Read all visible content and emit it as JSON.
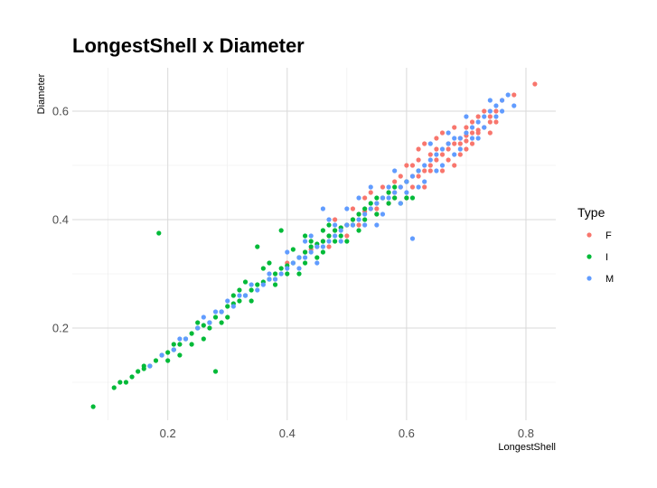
{
  "chart_data": {
    "type": "scatter",
    "title": "LongestShell x Diameter",
    "xlabel": "LongestShell",
    "ylabel": "Diameter",
    "xlim": [
      0.04,
      0.85
    ],
    "ylim": [
      0.03,
      0.68
    ],
    "x_ticks": [
      0.2,
      0.4,
      0.6,
      0.8
    ],
    "x_tick_labels": [
      "0.2",
      "0.4",
      "0.6",
      "0.8"
    ],
    "y_ticks": [
      0.2,
      0.4,
      0.6
    ],
    "y_tick_labels": [
      "0.2",
      "0.4",
      "0.6"
    ],
    "grid": true,
    "legend": {
      "title": "Type",
      "placement": "right"
    },
    "series": [
      {
        "name": "F",
        "color": "#F8766D",
        "points": [
          [
            0.815,
            0.65
          ],
          [
            0.78,
            0.63
          ],
          [
            0.75,
            0.6
          ],
          [
            0.74,
            0.59
          ],
          [
            0.73,
            0.57
          ],
          [
            0.72,
            0.565
          ],
          [
            0.71,
            0.56
          ],
          [
            0.7,
            0.555
          ],
          [
            0.7,
            0.545
          ],
          [
            0.69,
            0.54
          ],
          [
            0.68,
            0.54
          ],
          [
            0.67,
            0.53
          ],
          [
            0.66,
            0.52
          ],
          [
            0.65,
            0.51
          ],
          [
            0.64,
            0.5
          ],
          [
            0.63,
            0.49
          ],
          [
            0.62,
            0.48
          ],
          [
            0.61,
            0.48
          ],
          [
            0.6,
            0.47
          ],
          [
            0.59,
            0.46
          ],
          [
            0.58,
            0.45
          ],
          [
            0.57,
            0.45
          ],
          [
            0.56,
            0.44
          ],
          [
            0.55,
            0.43
          ],
          [
            0.54,
            0.42
          ],
          [
            0.53,
            0.415
          ],
          [
            0.52,
            0.41
          ],
          [
            0.51,
            0.4
          ],
          [
            0.5,
            0.39
          ],
          [
            0.49,
            0.385
          ],
          [
            0.48,
            0.38
          ],
          [
            0.47,
            0.37
          ],
          [
            0.46,
            0.36
          ],
          [
            0.45,
            0.35
          ],
          [
            0.44,
            0.345
          ],
          [
            0.43,
            0.34
          ],
          [
            0.55,
            0.41
          ],
          [
            0.6,
            0.5
          ],
          [
            0.62,
            0.53
          ],
          [
            0.65,
            0.55
          ],
          [
            0.68,
            0.57
          ],
          [
            0.72,
            0.59
          ],
          [
            0.6,
            0.44
          ],
          [
            0.63,
            0.46
          ],
          [
            0.66,
            0.49
          ],
          [
            0.58,
            0.47
          ],
          [
            0.64,
            0.52
          ],
          [
            0.7,
            0.57
          ],
          [
            0.74,
            0.58
          ],
          [
            0.67,
            0.51
          ],
          [
            0.69,
            0.55
          ],
          [
            0.71,
            0.58
          ],
          [
            0.57,
            0.43
          ],
          [
            0.52,
            0.39
          ],
          [
            0.5,
            0.37
          ],
          [
            0.47,
            0.35
          ],
          [
            0.62,
            0.51
          ],
          [
            0.76,
            0.62
          ],
          [
            0.73,
            0.6
          ],
          [
            0.66,
            0.56
          ],
          [
            0.63,
            0.54
          ],
          [
            0.68,
            0.5
          ],
          [
            0.75,
            0.58
          ],
          [
            0.53,
            0.44
          ],
          [
            0.56,
            0.46
          ],
          [
            0.61,
            0.46
          ],
          [
            0.64,
            0.49
          ],
          [
            0.72,
            0.56
          ],
          [
            0.7,
            0.53
          ],
          [
            0.59,
            0.48
          ],
          [
            0.4,
            0.32
          ],
          [
            0.42,
            0.33
          ],
          [
            0.38,
            0.29
          ],
          [
            0.54,
            0.45
          ],
          [
            0.65,
            0.53
          ],
          [
            0.61,
            0.5
          ],
          [
            0.67,
            0.54
          ],
          [
            0.69,
            0.52
          ],
          [
            0.71,
            0.54
          ],
          [
            0.74,
            0.56
          ],
          [
            0.58,
            0.44
          ],
          [
            0.55,
            0.42
          ],
          [
            0.51,
            0.42
          ],
          [
            0.48,
            0.4
          ]
        ]
      },
      {
        "name": "I",
        "color": "#00BA38",
        "points": [
          [
            0.075,
            0.055
          ],
          [
            0.11,
            0.09
          ],
          [
            0.13,
            0.1
          ],
          [
            0.14,
            0.11
          ],
          [
            0.15,
            0.12
          ],
          [
            0.16,
            0.125
          ],
          [
            0.17,
            0.13
          ],
          [
            0.18,
            0.14
          ],
          [
            0.19,
            0.15
          ],
          [
            0.2,
            0.155
          ],
          [
            0.21,
            0.16
          ],
          [
            0.22,
            0.17
          ],
          [
            0.23,
            0.18
          ],
          [
            0.24,
            0.19
          ],
          [
            0.25,
            0.2
          ],
          [
            0.26,
            0.205
          ],
          [
            0.27,
            0.21
          ],
          [
            0.28,
            0.22
          ],
          [
            0.29,
            0.23
          ],
          [
            0.3,
            0.24
          ],
          [
            0.31,
            0.245
          ],
          [
            0.32,
            0.25
          ],
          [
            0.33,
            0.26
          ],
          [
            0.34,
            0.27
          ],
          [
            0.35,
            0.28
          ],
          [
            0.36,
            0.285
          ],
          [
            0.37,
            0.29
          ],
          [
            0.38,
            0.3
          ],
          [
            0.39,
            0.31
          ],
          [
            0.4,
            0.315
          ],
          [
            0.41,
            0.32
          ],
          [
            0.42,
            0.33
          ],
          [
            0.43,
            0.34
          ],
          [
            0.44,
            0.35
          ],
          [
            0.45,
            0.355
          ],
          [
            0.46,
            0.36
          ],
          [
            0.47,
            0.37
          ],
          [
            0.48,
            0.38
          ],
          [
            0.49,
            0.385
          ],
          [
            0.5,
            0.39
          ],
          [
            0.51,
            0.4
          ],
          [
            0.52,
            0.41
          ],
          [
            0.53,
            0.42
          ],
          [
            0.54,
            0.43
          ],
          [
            0.55,
            0.44
          ],
          [
            0.56,
            0.44
          ],
          [
            0.57,
            0.45
          ],
          [
            0.58,
            0.46
          ],
          [
            0.6,
            0.47
          ],
          [
            0.62,
            0.49
          ],
          [
            0.185,
            0.375
          ],
          [
            0.28,
            0.12
          ],
          [
            0.26,
            0.18
          ],
          [
            0.33,
            0.285
          ],
          [
            0.36,
            0.31
          ],
          [
            0.38,
            0.28
          ],
          [
            0.4,
            0.3
          ],
          [
            0.43,
            0.32
          ],
          [
            0.44,
            0.36
          ],
          [
            0.35,
            0.35
          ],
          [
            0.39,
            0.38
          ],
          [
            0.41,
            0.345
          ],
          [
            0.46,
            0.38
          ],
          [
            0.48,
            0.36
          ],
          [
            0.5,
            0.36
          ],
          [
            0.52,
            0.38
          ],
          [
            0.55,
            0.41
          ],
          [
            0.59,
            0.43
          ],
          [
            0.61,
            0.44
          ],
          [
            0.22,
            0.15
          ],
          [
            0.24,
            0.17
          ],
          [
            0.3,
            0.22
          ],
          [
            0.32,
            0.27
          ],
          [
            0.34,
            0.25
          ],
          [
            0.37,
            0.32
          ],
          [
            0.42,
            0.3
          ],
          [
            0.45,
            0.33
          ],
          [
            0.47,
            0.39
          ],
          [
            0.49,
            0.37
          ],
          [
            0.53,
            0.4
          ],
          [
            0.25,
            0.21
          ],
          [
            0.27,
            0.2
          ],
          [
            0.29,
            0.21
          ],
          [
            0.31,
            0.26
          ],
          [
            0.43,
            0.37
          ],
          [
            0.46,
            0.34
          ],
          [
            0.51,
            0.39
          ],
          [
            0.57,
            0.43
          ],
          [
            0.58,
            0.44
          ],
          [
            0.6,
            0.44
          ],
          [
            0.12,
            0.1
          ],
          [
            0.16,
            0.13
          ],
          [
            0.2,
            0.14
          ],
          [
            0.21,
            0.17
          ]
        ]
      },
      {
        "name": "M",
        "color": "#619CFF",
        "points": [
          [
            0.77,
            0.63
          ],
          [
            0.76,
            0.62
          ],
          [
            0.75,
            0.61
          ],
          [
            0.74,
            0.6
          ],
          [
            0.73,
            0.59
          ],
          [
            0.72,
            0.58
          ],
          [
            0.71,
            0.57
          ],
          [
            0.7,
            0.56
          ],
          [
            0.69,
            0.55
          ],
          [
            0.68,
            0.55
          ],
          [
            0.67,
            0.54
          ],
          [
            0.66,
            0.53
          ],
          [
            0.65,
            0.52
          ],
          [
            0.64,
            0.51
          ],
          [
            0.63,
            0.5
          ],
          [
            0.62,
            0.49
          ],
          [
            0.61,
            0.48
          ],
          [
            0.6,
            0.47
          ],
          [
            0.59,
            0.46
          ],
          [
            0.58,
            0.45
          ],
          [
            0.57,
            0.44
          ],
          [
            0.56,
            0.44
          ],
          [
            0.55,
            0.43
          ],
          [
            0.54,
            0.42
          ],
          [
            0.53,
            0.41
          ],
          [
            0.52,
            0.4
          ],
          [
            0.51,
            0.39
          ],
          [
            0.5,
            0.39
          ],
          [
            0.49,
            0.38
          ],
          [
            0.48,
            0.37
          ],
          [
            0.47,
            0.36
          ],
          [
            0.46,
            0.35
          ],
          [
            0.45,
            0.35
          ],
          [
            0.44,
            0.34
          ],
          [
            0.43,
            0.33
          ],
          [
            0.42,
            0.33
          ],
          [
            0.41,
            0.32
          ],
          [
            0.4,
            0.31
          ],
          [
            0.39,
            0.3
          ],
          [
            0.38,
            0.29
          ],
          [
            0.37,
            0.29
          ],
          [
            0.36,
            0.28
          ],
          [
            0.35,
            0.27
          ],
          [
            0.33,
            0.26
          ],
          [
            0.31,
            0.24
          ],
          [
            0.29,
            0.23
          ],
          [
            0.27,
            0.21
          ],
          [
            0.25,
            0.2
          ],
          [
            0.23,
            0.18
          ],
          [
            0.21,
            0.16
          ],
          [
            0.19,
            0.15
          ],
          [
            0.17,
            0.13
          ],
          [
            0.46,
            0.42
          ],
          [
            0.52,
            0.44
          ],
          [
            0.61,
            0.365
          ],
          [
            0.55,
            0.39
          ],
          [
            0.6,
            0.45
          ],
          [
            0.63,
            0.47
          ],
          [
            0.66,
            0.5
          ],
          [
            0.69,
            0.53
          ],
          [
            0.72,
            0.55
          ],
          [
            0.75,
            0.59
          ],
          [
            0.78,
            0.61
          ],
          [
            0.74,
            0.62
          ],
          [
            0.7,
            0.59
          ],
          [
            0.64,
            0.54
          ],
          [
            0.58,
            0.49
          ],
          [
            0.54,
            0.46
          ],
          [
            0.5,
            0.42
          ],
          [
            0.47,
            0.4
          ],
          [
            0.43,
            0.36
          ],
          [
            0.4,
            0.34
          ],
          [
            0.37,
            0.3
          ],
          [
            0.34,
            0.28
          ],
          [
            0.3,
            0.25
          ],
          [
            0.68,
            0.52
          ],
          [
            0.71,
            0.55
          ],
          [
            0.62,
            0.46
          ],
          [
            0.65,
            0.49
          ],
          [
            0.57,
            0.46
          ],
          [
            0.53,
            0.39
          ],
          [
            0.49,
            0.36
          ],
          [
            0.45,
            0.32
          ],
          [
            0.42,
            0.31
          ],
          [
            0.76,
            0.6
          ],
          [
            0.73,
            0.57
          ],
          [
            0.67,
            0.56
          ],
          [
            0.59,
            0.43
          ],
          [
            0.56,
            0.41
          ],
          [
            0.48,
            0.39
          ],
          [
            0.44,
            0.37
          ],
          [
            0.26,
            0.22
          ],
          [
            0.22,
            0.18
          ],
          [
            0.28,
            0.23
          ],
          [
            0.32,
            0.26
          ]
        ]
      }
    ]
  }
}
